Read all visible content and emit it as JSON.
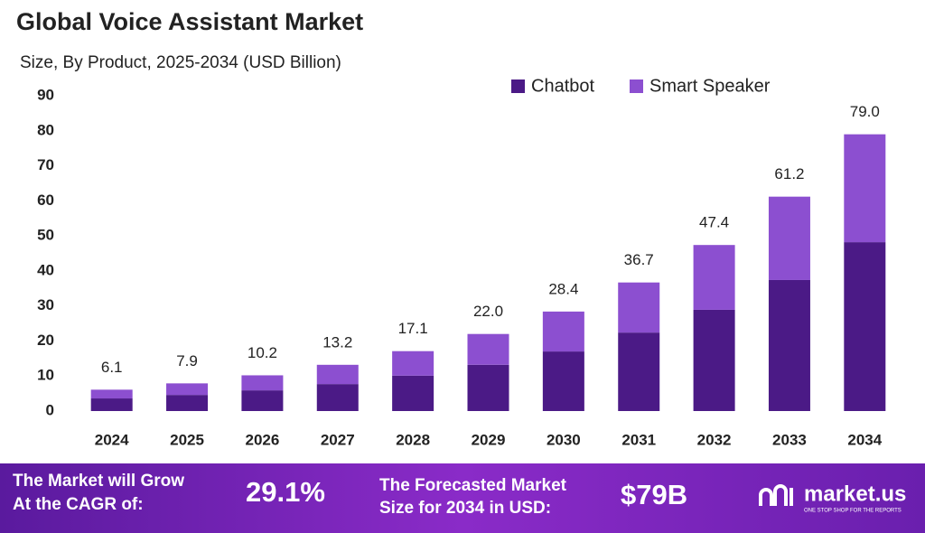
{
  "chart_data": {
    "type": "stacked-bar",
    "title": "Global Voice Assistant Market",
    "subtitle": "Size, By Product, 2025-2034 (USD Billion)",
    "categories": [
      "2024",
      "2025",
      "2026",
      "2027",
      "2028",
      "2029",
      "2030",
      "2031",
      "2032",
      "2033",
      "2034"
    ],
    "series": [
      {
        "name": "Chatbot",
        "color": "#4b1a86",
        "values": [
          3.6,
          4.6,
          5.9,
          7.7,
          10.1,
          13.2,
          17.0,
          22.4,
          28.9,
          37.4,
          48.2
        ]
      },
      {
        "name": "Smart Speaker",
        "color": "#8c4fd0",
        "values": [
          2.5,
          3.3,
          4.3,
          5.5,
          7.0,
          8.8,
          11.4,
          14.3,
          18.5,
          23.8,
          30.8
        ]
      }
    ],
    "totals": [
      6.1,
      7.9,
      10.2,
      13.2,
      17.1,
      22.0,
      28.4,
      36.7,
      47.4,
      61.2,
      79.0
    ],
    "total_labels": [
      "6.1",
      "7.9",
      "10.2",
      "13.2",
      "17.1",
      "22.0",
      "28.4",
      "36.7",
      "47.4",
      "61.2",
      "79.0"
    ],
    "ylim": [
      0,
      90
    ],
    "yticks": [
      0,
      10,
      20,
      30,
      40,
      50,
      60,
      70,
      80,
      90
    ],
    "grid": false
  },
  "footer": {
    "cagr_text": [
      "The Market will Grow",
      "At the CAGR of:"
    ],
    "cagr_value": "29.1%",
    "forecast_text": [
      "The Forecasted Market",
      "Size for 2034 in USD:"
    ],
    "forecast_value": "$79B",
    "brand": "market.us",
    "tagline": "ONE STOP SHOP FOR THE REPORTS"
  }
}
